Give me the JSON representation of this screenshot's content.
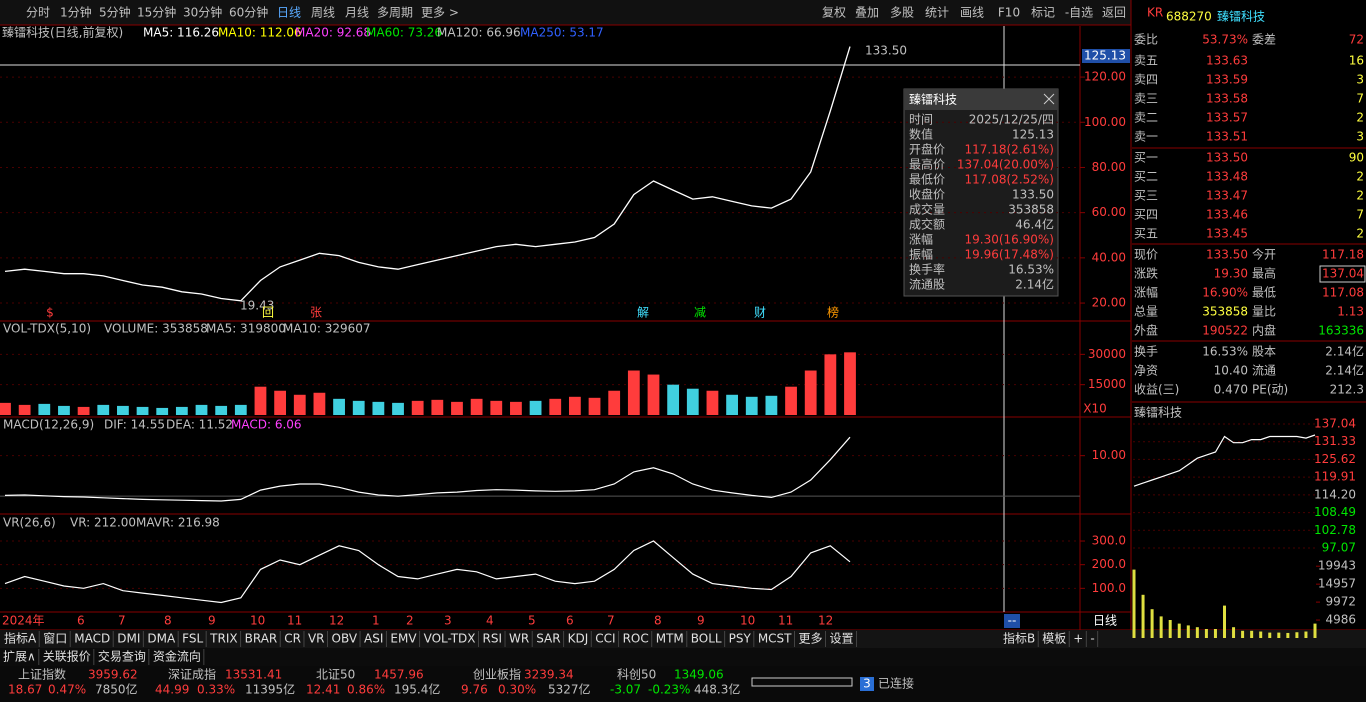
{
  "toolbar": {
    "periods": [
      "分时",
      "1分钟",
      "5分钟",
      "15分钟",
      "30分钟",
      "60分钟",
      "日线",
      "周线",
      "月线",
      "多周期",
      "更多 >"
    ],
    "actions": [
      "复权",
      "叠加",
      "多股",
      "统计",
      "画线",
      "F10",
      "标记",
      "-自选",
      "返回"
    ]
  },
  "chart_header": {
    "title": "臻镭科技(日线,前复权)",
    "ma": [
      {
        "label": "MA5: 116.26",
        "color": "#ffffff"
      },
      {
        "label": "MA10: 112.06",
        "color": "#ffff00"
      },
      {
        "label": "MA20: 92.68",
        "color": "#ff40ff"
      },
      {
        "label": "MA60: 73.26",
        "color": "#00e600"
      },
      {
        "label": "MA120: 66.96",
        "color": "#c0c0c0"
      },
      {
        "label": "MA250: 53.17",
        "color": "#3060ff"
      }
    ]
  },
  "price_chart": {
    "type": "line",
    "color": "#ffffff",
    "ylim": [
      12.5,
      142.6
    ],
    "yticks": [
      {
        "value": 120,
        "label": "120.00"
      },
      {
        "value": 100,
        "label": "100.00"
      },
      {
        "value": 80,
        "label": "80.00"
      },
      {
        "value": 60,
        "label": "60.00"
      },
      {
        "value": 40,
        "label": "40.00"
      },
      {
        "value": 20,
        "label": "20.00"
      }
    ],
    "cursor": {
      "value": 125.13,
      "label": "125.13"
    },
    "high_label": "133.50",
    "low_label": "19.43",
    "markers": [
      "$",
      "回",
      "张",
      "解",
      "减",
      "财",
      "榜"
    ],
    "values": [
      34,
      35,
      34,
      33,
      33,
      32,
      30,
      28,
      27,
      25,
      24,
      22,
      21,
      30,
      36,
      39,
      42,
      41,
      38,
      36,
      35,
      37,
      39,
      41,
      43,
      45,
      46,
      45,
      46,
      47,
      49,
      55,
      68,
      74,
      70,
      66,
      67,
      65,
      63,
      62,
      66,
      78,
      105,
      133.5
    ]
  },
  "x_axis": {
    "labels": [
      "2024年",
      "6",
      "7",
      "8",
      "9",
      "10",
      "11",
      "12",
      "1",
      "2",
      "3",
      "4",
      "5",
      "6",
      "7",
      "8",
      "9",
      "10",
      "11",
      "12"
    ],
    "cursor": "--",
    "period": "日线"
  },
  "volume_chart": {
    "type": "bar",
    "header": [
      "VOL-TDX(5,10)",
      "VOLUME: 353858",
      "MA5: 319800",
      "MA10: 329607"
    ],
    "unit": "X10",
    "ylim": [
      0,
      46000
    ],
    "yticks": [
      30000,
      15000
    ],
    "values": [
      6000,
      5000,
      5500,
      4500,
      4000,
      5000,
      4500,
      4000,
      3500,
      4000,
      5000,
      4500,
      5000,
      14000,
      12000,
      10000,
      11000,
      8000,
      7000,
      6500,
      6000,
      7000,
      7500,
      6500,
      8000,
      7000,
      6500,
      7000,
      8000,
      9000,
      8500,
      12000,
      22000,
      20000,
      15000,
      13000,
      12000,
      10000,
      9000,
      9500,
      14000,
      22000,
      30000,
      31000
    ]
  },
  "macd_chart": {
    "type": "line",
    "header": [
      "MACD(12,26,9)",
      "DIF: 14.55",
      "DEA: 11.52",
      "MACD: 6.06"
    ],
    "ylim": [
      -4.4,
      19.3
    ],
    "yticks": [
      {
        "value": 10,
        "label": "10.00"
      }
    ],
    "values": [
      0.2,
      0.3,
      0.1,
      -0.1,
      -0.2,
      -0.4,
      -0.6,
      -0.8,
      -0.9,
      -1,
      -1.1,
      -1.2,
      -0.8,
      1.5,
      2.5,
      3,
      3,
      2.2,
      1,
      0.3,
      0,
      0.4,
      0.8,
      1,
      1.4,
      1.6,
      1.5,
      1.3,
      1.2,
      1.3,
      1.6,
      3,
      6,
      7,
      5.5,
      3,
      1.5,
      0.8,
      0.2,
      -0.3,
      1,
      4,
      9,
      14.55
    ]
  },
  "vr_chart": {
    "type": "line",
    "header": [
      "VR(26,6)",
      "VR: 212.00",
      "MAVR: 216.98"
    ],
    "ylim": [
      0,
      410
    ],
    "yticks": [
      {
        "value": 300,
        "label": "300.0"
      },
      {
        "value": 200,
        "label": "200.0"
      },
      {
        "value": 100,
        "label": "100.0"
      }
    ],
    "values": [
      120,
      150,
      130,
      110,
      100,
      120,
      90,
      80,
      70,
      60,
      50,
      40,
      60,
      180,
      220,
      200,
      240,
      280,
      260,
      200,
      150,
      140,
      160,
      180,
      170,
      140,
      150,
      160,
      130,
      120,
      130,
      180,
      260,
      300,
      230,
      160,
      120,
      110,
      100,
      95,
      150,
      250,
      280,
      212
    ]
  },
  "tooltip": {
    "title": "臻镭科技",
    "rows": [
      [
        "时间",
        "2025/12/25/四"
      ],
      [
        "数值",
        "125.13"
      ],
      [
        "开盘价",
        "117.18(2.61%)"
      ],
      [
        "最高价",
        "137.04(20.00%)"
      ],
      [
        "最低价",
        "117.08(2.52%)"
      ],
      [
        "收盘价",
        "133.50"
      ],
      [
        "成交量",
        "353858"
      ],
      [
        "成交额",
        "46.4亿"
      ],
      [
        "涨幅",
        "19.30(16.90%)"
      ],
      [
        "振幅",
        "19.96(17.48%)"
      ],
      [
        "换手率",
        "16.53%"
      ],
      [
        "流通股",
        "2.14亿"
      ]
    ]
  },
  "stock": {
    "badge": "KR",
    "code": "688270",
    "name": "臻镭科技"
  },
  "order_book": {
    "ratio": [
      "委比",
      "53.73%",
      "委差",
      "72"
    ],
    "asks": [
      [
        "卖五",
        "133.63",
        "16"
      ],
      [
        "卖四",
        "133.59",
        "3"
      ],
      [
        "卖三",
        "133.58",
        "7"
      ],
      [
        "卖二",
        "133.57",
        "2"
      ],
      [
        "卖一",
        "133.51",
        "3"
      ]
    ],
    "bids": [
      [
        "买一",
        "133.50",
        "90"
      ],
      [
        "买二",
        "133.48",
        "2"
      ],
      [
        "买三",
        "133.47",
        "2"
      ],
      [
        "买四",
        "133.46",
        "7"
      ],
      [
        "买五",
        "133.45",
        "2"
      ]
    ]
  },
  "quote": [
    [
      "现价",
      "133.50",
      "今开",
      "117.18"
    ],
    [
      "涨跌",
      "19.30",
      "最高",
      "137.04"
    ],
    [
      "涨幅",
      "16.90%",
      "最低",
      "117.08"
    ],
    [
      "总量",
      "353858",
      "量比",
      "1.13"
    ],
    [
      "外盘",
      "190522",
      "内盘",
      "163336"
    ],
    [
      "换手",
      "16.53%",
      "股本",
      "2.14亿"
    ],
    [
      "净资",
      "10.40",
      "流通",
      "2.14亿"
    ],
    [
      "收益(三)",
      "0.470",
      "PE(动)",
      "212.3"
    ]
  ],
  "intraday": {
    "type": "line",
    "title": "臻镭科技",
    "ylim": [
      97.07,
      137.04
    ],
    "yticks": [
      137.04,
      131.33,
      125.62,
      119.91,
      {
        "value": 114.2,
        "label": "114.20"
      },
      108.49,
      102.78,
      97.07
    ],
    "prices": [
      117,
      118,
      119,
      120,
      121,
      122,
      124,
      126,
      127,
      128,
      133,
      131,
      131,
      132,
      132,
      133,
      133,
      133,
      133,
      132.5,
      133.5
    ],
    "vol_ylim": [
      0,
      25000
    ],
    "vol_yticks": [
      19943,
      14957,
      9972,
      4986
    ],
    "volumes": [
      19000,
      12000,
      8000,
      6000,
      5000,
      4000,
      3500,
      3000,
      2500,
      2500,
      9000,
      3000,
      2000,
      2000,
      1800,
      1500,
      1500,
      1400,
      1600,
      1800,
      4000
    ]
  },
  "indicator_tabs": [
    "指标A",
    "窗口",
    "MACD",
    "DMI",
    "DMA",
    "FSL",
    "TRIX",
    "BRAR",
    "CR",
    "VR",
    "OBV",
    "ASI",
    "EMV",
    "VOL-TDX",
    "RSI",
    "WR",
    "SAR",
    "KDJ",
    "CCI",
    "ROC",
    "MTM",
    "BOLL",
    "PSY",
    "MCST",
    "更多",
    "设置"
  ],
  "right_tabs": [
    "指标B",
    "模板",
    "+",
    "-"
  ],
  "info_tabs": [
    "扩展∧",
    "关联报价",
    "交易查询",
    "资金流向"
  ],
  "status": {
    "indices": [
      [
        "上证指数",
        "3959.62",
        "18.67",
        "0.47%",
        "7850亿"
      ],
      [
        "深证成指",
        "13531.41",
        "44.99",
        "0.33%",
        "11395亿"
      ],
      [
        "北证50",
        "1457.96",
        "12.41",
        "0.86%",
        "195.4亿"
      ],
      [
        "创业板指",
        "3239.34",
        "9.76",
        "0.30%",
        "5327亿"
      ],
      [
        "科创50",
        "1349.06",
        "-3.07",
        "-0.23%",
        "448.3亿"
      ]
    ],
    "connection_count": "3",
    "connection": "已连接"
  }
}
